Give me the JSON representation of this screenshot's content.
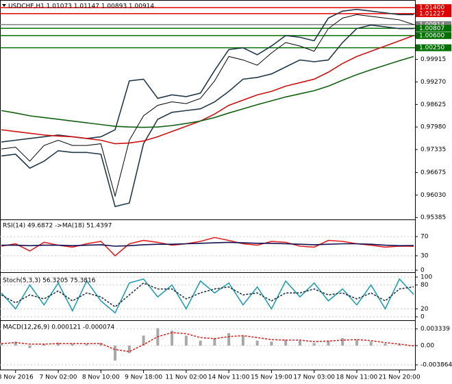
{
  "chart_data": [
    {
      "type": "line",
      "title": "USDCHF,H1  1.01073 1.01147 1.00893 1.00914",
      "ylim": [
        0.9537,
        1.0154
      ],
      "yticks": [
        0.99915,
        {
          "value": 0.9927,
          "label": "0.99270"
        },
        0.98625,
        {
          "value": 0.9798,
          "label": "0.97980"
        },
        0.97335,
        0.96675,
        {
          "value": 0.9603,
          "label": "0.96030"
        },
        0.95385
      ],
      "levels": [
        {
          "value": 1.014,
          "label": "1.01400",
          "color": "#e00000"
        },
        {
          "value": 1.01227,
          "color": "#e00000"
        },
        {
          "value": 1.00914,
          "color": "#808080"
        },
        {
          "value": 1.00807,
          "color": "#007000"
        },
        {
          "value": 1.006,
          "label": "1.00600",
          "color": "#007000"
        },
        {
          "value": 1.0025,
          "label": "1.00250",
          "color": "#007000"
        }
      ],
      "series": [
        {
          "color": "#203848",
          "values": [
            0.9755,
            0.976,
            0.9765,
            0.977,
            0.9775,
            0.977,
            0.9765,
            0.977,
            0.979,
            0.993,
            0.9935,
            0.988,
            0.989,
            0.9885,
            0.9895,
            0.996,
            1.002,
            1.0025,
            1.0005,
            1.003,
            1.006,
            1.0055,
            1.0045,
            1.011,
            1.013,
            1.0135,
            1.013,
            1.0125,
            1.012,
            1.012
          ]
        },
        {
          "color": "#203848",
          "values": [
            0.9715,
            0.972,
            0.968,
            0.97,
            0.973,
            0.9725,
            0.9725,
            0.972,
            0.957,
            0.958,
            0.975,
            0.982,
            0.984,
            0.9845,
            0.985,
            0.987,
            0.99,
            0.9935,
            0.994,
            0.995,
            0.997,
            0.999,
            0.9985,
            0.999,
            1.004,
            1.008,
            1.009,
            1.0085,
            1.008,
            1.008
          ]
        },
        {
          "color": "#d01010",
          "values": [
            0.979,
            0.9785,
            0.978,
            0.9775,
            0.9772,
            0.977,
            0.9765,
            0.976,
            0.975,
            0.9752,
            0.9758,
            0.977,
            0.9785,
            0.98,
            0.9815,
            0.9835,
            0.986,
            0.9875,
            0.989,
            0.99,
            0.9915,
            0.9925,
            0.9935,
            0.9955,
            0.998,
            1.0,
            1.0015,
            1.003,
            1.0045,
            1.006
          ]
        },
        {
          "color": "#106010",
          "values": [
            0.9845,
            0.9838,
            0.983,
            0.9825,
            0.982,
            0.9815,
            0.981,
            0.9805,
            0.98,
            0.9798,
            0.9797,
            0.9798,
            0.9802,
            0.9808,
            0.9815,
            0.9825,
            0.9838,
            0.985,
            0.9862,
            0.9873,
            0.9884,
            0.9893,
            0.9902,
            0.9915,
            0.9932,
            0.9948,
            0.9962,
            0.9975,
            0.9988,
            1.0
          ]
        },
        {
          "color": "#000000",
          "values": [
            0.9735,
            0.974,
            0.97,
            0.9745,
            0.976,
            0.9745,
            0.9745,
            0.975,
            0.96,
            0.976,
            0.983,
            0.986,
            0.987,
            0.9865,
            0.988,
            0.993,
            1.0,
            0.999,
            0.9975,
            1.001,
            1.004,
            1.003,
            1.0015,
            1.008,
            1.011,
            1.012,
            1.0115,
            1.011,
            1.0105,
            1.00914
          ]
        }
      ]
    },
    {
      "type": "line",
      "title": "RSI(14) 49.6872  ->MA(18) 51.4397",
      "ylim": [
        0,
        100
      ],
      "yticks": [
        70,
        30,
        0
      ],
      "series": [
        {
          "color": "#e02020",
          "values": [
            50,
            55,
            40,
            58,
            52,
            48,
            55,
            60,
            30,
            55,
            62,
            58,
            52,
            55,
            60,
            68,
            62,
            55,
            52,
            60,
            58,
            50,
            48,
            62,
            60,
            55,
            52,
            48,
            50,
            49.6872
          ]
        },
        {
          "color": "#101050",
          "values": [
            52,
            52,
            51,
            52,
            52,
            51,
            52,
            53,
            50,
            51,
            53,
            54,
            54,
            55,
            56,
            57,
            58,
            57,
            56,
            56,
            55,
            54,
            53,
            54,
            55,
            55,
            54,
            52,
            51,
            51.4397
          ]
        }
      ]
    },
    {
      "type": "line",
      "title": "Stoch(5,3,3) 56.3205 75.3816",
      "ylim": [
        0,
        100
      ],
      "yticks": [
        100,
        80,
        20,
        0
      ],
      "series": [
        {
          "color": "#20a0b0",
          "values": [
            60,
            20,
            80,
            30,
            85,
            15,
            90,
            40,
            10,
            85,
            95,
            50,
            80,
            20,
            90,
            60,
            85,
            30,
            75,
            20,
            90,
            50,
            85,
            40,
            70,
            30,
            80,
            20,
            95,
            56.3205
          ]
        },
        {
          "color": "#203040",
          "dash": true,
          "values": [
            55,
            35,
            55,
            45,
            65,
            40,
            60,
            50,
            25,
            55,
            85,
            70,
            70,
            45,
            60,
            70,
            75,
            55,
            60,
            40,
            60,
            60,
            70,
            55,
            60,
            45,
            60,
            40,
            70,
            75.3816
          ]
        }
      ]
    },
    {
      "type": "bar",
      "title": "MACD(12,26,9) 0.000121 -0.000074",
      "ylim": [
        -0.0044,
        0.0044
      ],
      "yticks": [
        0.003339,
        {
          "value": 0,
          "label": "0.00"
        },
        -0.003864
      ],
      "categories": [
        null,
        "3 Nov 2016",
        null,
        null,
        "7 Nov 02:00",
        null,
        null,
        "8 Nov 10:00",
        null,
        null,
        "9 Nov 18:00",
        null,
        null,
        "11 Nov 02:00",
        null,
        null,
        "14 Nov 11:00",
        null,
        null,
        "15 Nov 19:00",
        null,
        null,
        "17 Nov 03:00",
        null,
        null,
        "18 Nov 11:00",
        null,
        null,
        "21 Nov 20:00",
        null
      ],
      "color": "#a8a8a8",
      "values": [
        0.0005,
        0.0008,
        -0.0005,
        0.0003,
        0.0006,
        0.0004,
        0.0003,
        0.0005,
        -0.003,
        -0.0015,
        0.002,
        0.0035,
        0.003,
        0.002,
        0.001,
        0.0015,
        0.0025,
        0.002,
        0.001,
        0.0008,
        0.0012,
        0.001,
        0.0005,
        0.001,
        0.0015,
        0.0012,
        0.0008,
        0.0004,
        0.0002,
        0.000121
      ],
      "series": [
        {
          "color": "#e02020",
          "dash": true,
          "values": [
            0.0004,
            0.0006,
            0.0003,
            0.0003,
            0.0004,
            0.0004,
            0.0004,
            0.0004,
            -0.0008,
            -0.0012,
            0.0002,
            0.0018,
            0.0026,
            0.0024,
            0.0016,
            0.0014,
            0.0018,
            0.002,
            0.0016,
            0.0012,
            0.0011,
            0.0011,
            0.0008,
            0.0009,
            0.0011,
            0.0012,
            0.001,
            0.0006,
            0.0003,
            -7.4e-05
          ]
        }
      ]
    }
  ]
}
